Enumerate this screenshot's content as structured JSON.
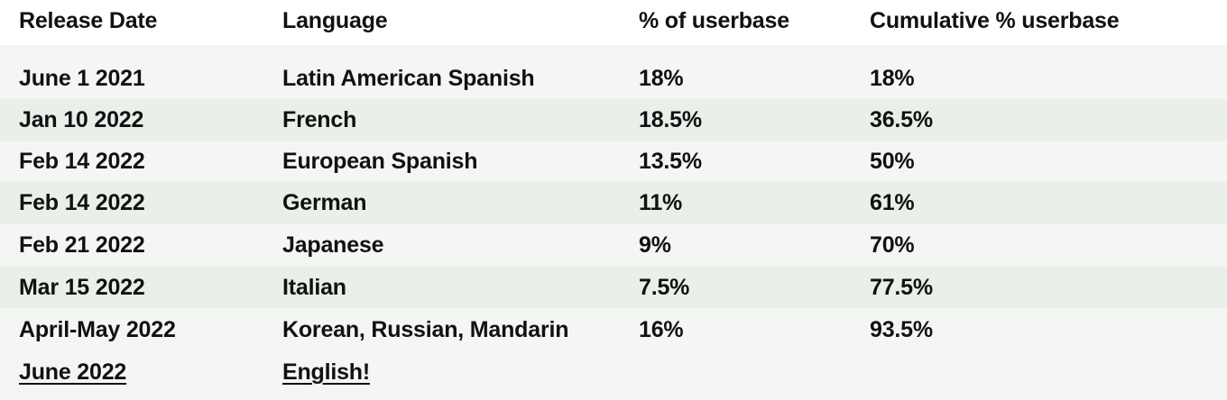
{
  "table": {
    "headers": [
      "Release Date",
      "Language",
      "% of userbase",
      "Cumulative % userbase"
    ],
    "rows": [
      {
        "release_date": "June 1 2021",
        "language": "Latin American Spanish",
        "pct": "18%",
        "cumulative": "18%"
      },
      {
        "release_date": "Jan 10 2022",
        "language": "French",
        "pct": "18.5%",
        "cumulative": "36.5%"
      },
      {
        "release_date": "Feb 14 2022",
        "language": "European Spanish",
        "pct": "13.5%",
        "cumulative": "50%"
      },
      {
        "release_date": "Feb 14 2022",
        "language": "German",
        "pct": "11%",
        "cumulative": "61%"
      },
      {
        "release_date": "Feb 21 2022",
        "language": "Japanese",
        "pct": "9%",
        "cumulative": "70%"
      },
      {
        "release_date": "Mar 15 2022",
        "language": "Italian",
        "pct": "7.5%",
        "cumulative": "77.5%"
      },
      {
        "release_date": "April-May 2022",
        "language": "Korean, Russian, Mandarin",
        "pct": "16%",
        "cumulative": "93.5%"
      },
      {
        "release_date": "June 2022",
        "language": "English!",
        "pct": "",
        "cumulative": ""
      }
    ]
  }
}
